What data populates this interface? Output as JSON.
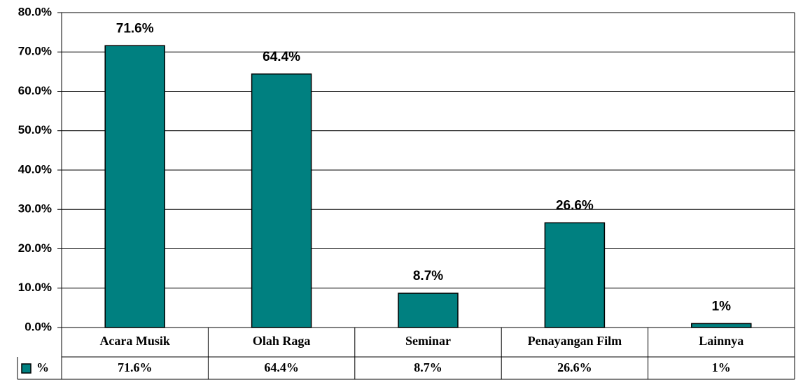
{
  "chart_data": {
    "type": "bar",
    "categories": [
      "Acara Musik",
      "Olah Raga",
      "Seminar",
      "Penayangan Film",
      "Lainnya"
    ],
    "series": [
      {
        "name": "%",
        "color": "#008080",
        "values": [
          71.6,
          64.4,
          8.7,
          26.6,
          1
        ],
        "value_labels": [
          "71.6%",
          "64.4%",
          "8.7%",
          "26.6%",
          "1%"
        ]
      }
    ],
    "ylim": [
      0,
      80
    ],
    "yticks": [
      {
        "value": 0,
        "label": "0.0%"
      },
      {
        "value": 10,
        "label": "10.0%"
      },
      {
        "value": 20,
        "label": "20.0%"
      },
      {
        "value": 30,
        "label": "30.0%"
      },
      {
        "value": 40,
        "label": "40.0%"
      },
      {
        "value": 50,
        "label": "50.0%"
      },
      {
        "value": 60,
        "label": "60.0%"
      },
      {
        "value": 70,
        "label": "70.0%"
      },
      {
        "value": 80,
        "label": "80.0%"
      }
    ],
    "grid": true
  }
}
